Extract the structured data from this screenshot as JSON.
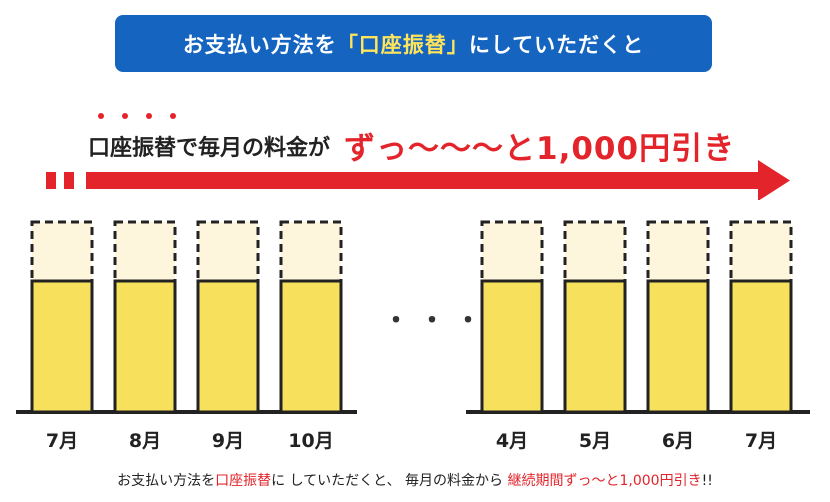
{
  "banner": {
    "prefix": "お支払い方法を",
    "highlight": "「口座振替」",
    "suffix": "にしていただくと"
  },
  "headline": {
    "lead": "口座振替で毎月の料金が",
    "emphasis": "ずっ〜〜〜と1,000円引き"
  },
  "months_left": [
    "7月",
    "8月",
    "9月",
    "10月"
  ],
  "months_right": [
    "4月",
    "5月",
    "6月",
    "7月"
  ],
  "ellipsis": "・・・",
  "footer": {
    "part1": "お支払い方法を",
    "part2_red": "口座振替",
    "part3": "に していただくと、 毎月の料金から",
    "part4_red": "継続期間ずっ〜と1,000円引き",
    "part5": "!!"
  },
  "colors": {
    "banner_bg": "#1565c0",
    "banner_highlight": "#ffe45c",
    "accent_red": "#e3242b",
    "bar_fill": "#f7e05b",
    "bar_ghost": "#fdf6dc"
  }
}
